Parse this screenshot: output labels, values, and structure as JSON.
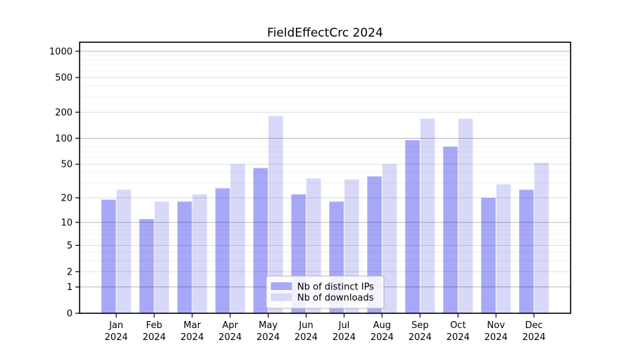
{
  "figure": {
    "background": "#ffffff"
  },
  "chart_data": {
    "type": "bar",
    "title": "FieldEffectCrc 2024",
    "categories": [
      "Jan",
      "Feb",
      "Mar",
      "Apr",
      "May",
      "Jun",
      "Jul",
      "Aug",
      "Sep",
      "Oct",
      "Nov",
      "Dec"
    ],
    "year_label": "2024",
    "series": [
      {
        "name": "Nb of distinct IPs",
        "color": "#a8a8f8",
        "values": [
          19,
          11,
          18,
          26,
          45,
          22,
          18,
          36,
          95,
          80,
          20,
          25
        ]
      },
      {
        "name": "Nb of downloads",
        "color": "#d8d8f8",
        "values": [
          25,
          18,
          22,
          50,
          180,
          34,
          33,
          50,
          168,
          168,
          29,
          52
        ]
      }
    ],
    "y_scale": "log1p",
    "y_ticks": [
      0,
      1,
      2,
      5,
      10,
      20,
      50,
      100,
      200,
      500,
      1000
    ],
    "y_minor_ticks": [
      3,
      4,
      6,
      7,
      8,
      9,
      30,
      40,
      60,
      70,
      80,
      90,
      300,
      400,
      600,
      700,
      800,
      900
    ],
    "ylim": [
      0,
      1270
    ],
    "grid": true,
    "legend": {
      "position": "lower-center-inside"
    },
    "colors": {
      "axis": "#000000",
      "grid_minor": "rgba(0,0,0,0.055)",
      "grid_major": "rgba(0,0,0,0.135)",
      "grid_decade": "rgba(0,0,0,0.28)",
      "legend_border": "#b3b3b3",
      "legend_fill": "rgba(255,255,255,0.85)"
    }
  }
}
